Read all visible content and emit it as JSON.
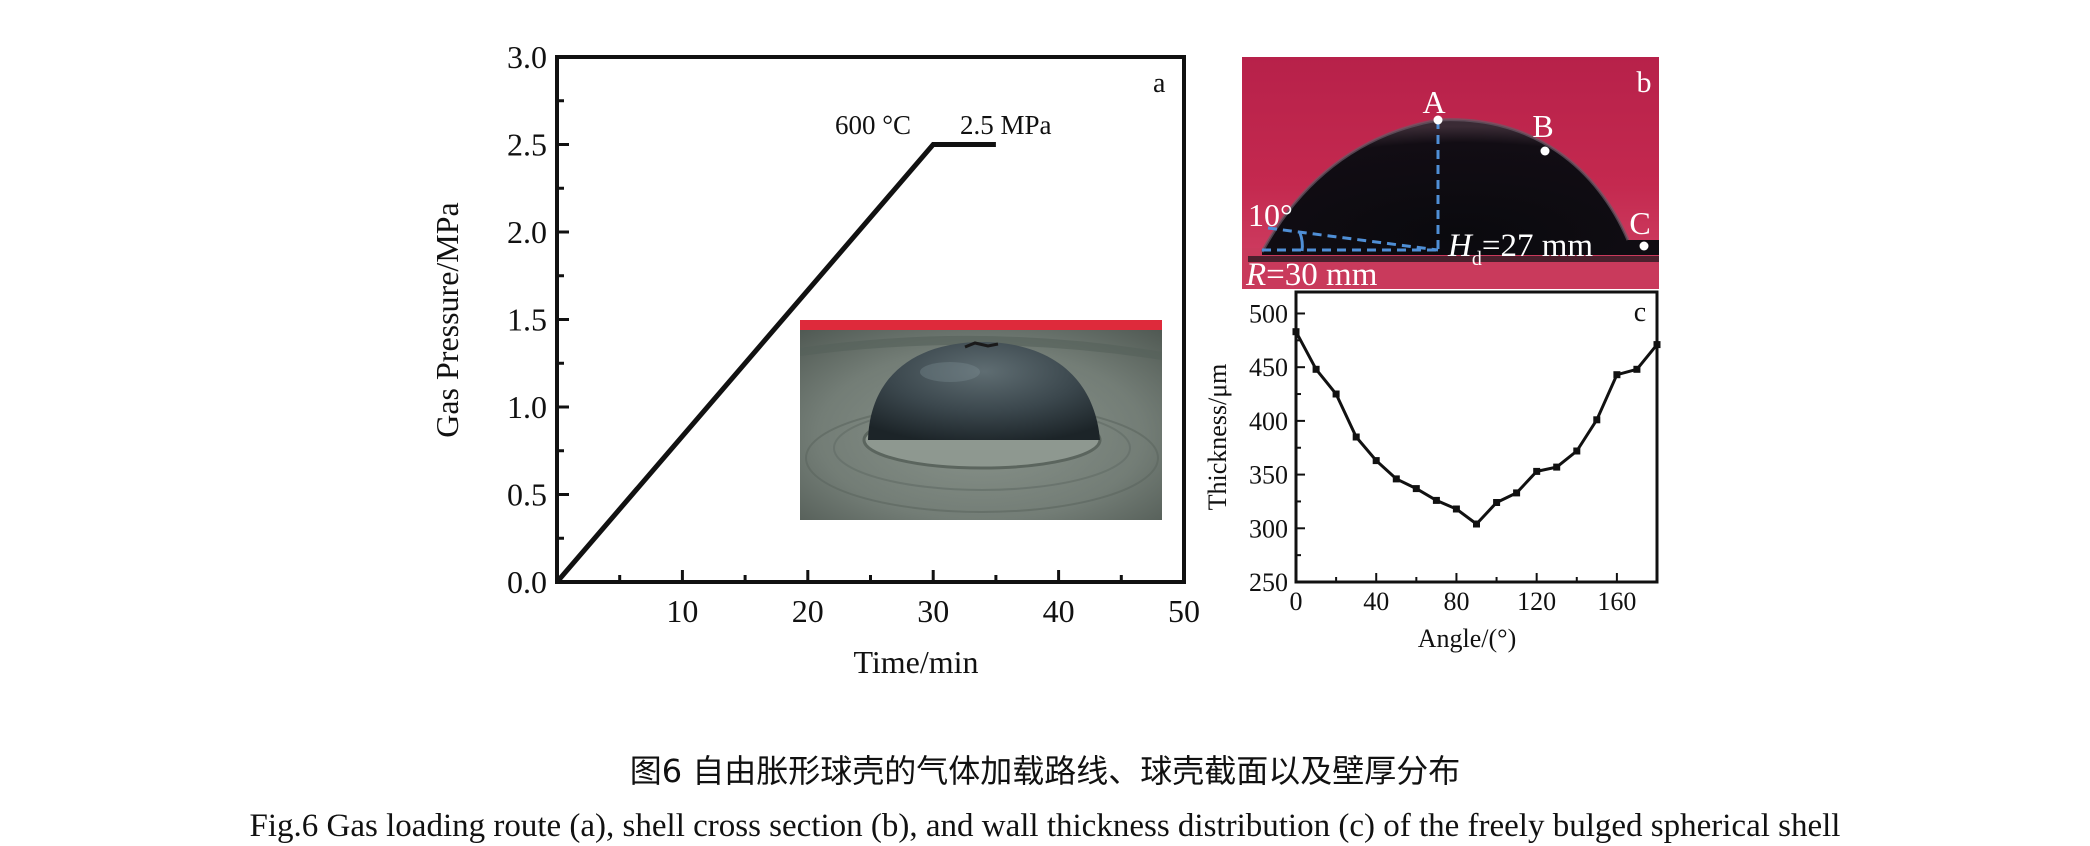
{
  "chart_data": [
    {
      "panel": "a",
      "type": "line",
      "xlabel": "Time/min",
      "ylabel": "Gas Pressure/MPa",
      "xlim": [
        0,
        50
      ],
      "ylim": [
        0,
        3.0
      ],
      "x_ticks": [
        10,
        20,
        30,
        40,
        50
      ],
      "y_ticks": [
        "0.0",
        "0.5",
        "1.0",
        "1.5",
        "2.0",
        "2.5",
        "3.0"
      ],
      "series": [
        {
          "x": [
            0,
            30,
            35
          ],
          "y": [
            0,
            2.5,
            2.5
          ]
        }
      ],
      "annotations": [
        "600 °C",
        "2.5 MPa"
      ],
      "grid": false
    },
    {
      "panel": "c",
      "type": "line",
      "xlabel": "Angle/(°)",
      "ylabel": "Thickness/μm",
      "xlim": [
        0,
        180
      ],
      "ylim": [
        250,
        520
      ],
      "x_ticks": [
        0,
        40,
        80,
        120,
        160
      ],
      "y_ticks": [
        250,
        300,
        350,
        400,
        450,
        500
      ],
      "series": [
        {
          "x": [
            0,
            10,
            20,
            30,
            40,
            50,
            60,
            70,
            80,
            90,
            100,
            110,
            120,
            130,
            140,
            150,
            160,
            170,
            180
          ],
          "y": [
            483,
            448,
            425,
            385,
            363,
            346,
            337,
            326,
            318,
            304,
            324,
            333,
            353,
            357,
            372,
            401,
            443,
            448,
            471
          ]
        }
      ],
      "grid": false
    }
  ],
  "panels": {
    "a_label": "a",
    "b_label": "b",
    "c_label": "c",
    "b_points": [
      "A",
      "B",
      "C"
    ],
    "b_angle": "10°",
    "b_height_symbol": "H",
    "b_height_sub": "d",
    "b_height_value": "=27 mm",
    "b_radius_symbol": "R",
    "b_radius_value": "=30 mm"
  },
  "caption": {
    "chinese": "图6  自由胀形球壳的气体加载路线、球壳截面以及壁厚分布",
    "english": "Fig.6  Gas loading route (a), shell cross section (b), and wall thickness distribution (c) of the freely bulged spherical shell"
  },
  "colors": {
    "axes": "#111111",
    "photo_b_bg": "#c2284f",
    "photo_b_ground": "#c93a5c",
    "dome_b": "#0e0b11",
    "dashed": "#4f8fd6",
    "photo_inset_bg": "#de2a3b",
    "photo_inset_plate": "#6f7a73",
    "photo_inset_dome": "#2f3a40"
  }
}
